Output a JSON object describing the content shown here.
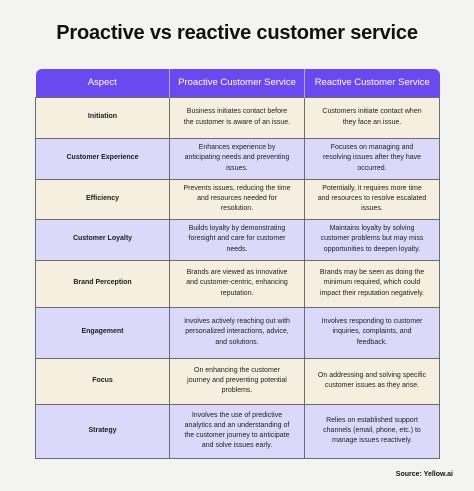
{
  "title": "Proactive vs reactive customer service",
  "headers": [
    "Aspect",
    "Proactive Customer Service",
    "Reactive Customer Service"
  ],
  "rows": [
    {
      "aspect": "Initiation",
      "proactive": "Business initiates contact before the customer is aware of an issue.",
      "reactive": "Customers initiate contact when they face an issue."
    },
    {
      "aspect": "Customer Experience",
      "proactive": "Enhances experience by anticipating needs and preventing issues.",
      "reactive": "Focuses on managing and resolving issues after they have occurred."
    },
    {
      "aspect": "Efficiency",
      "proactive": "Prevents issues, reducing the time and resources needed for resolution.",
      "reactive": "Potentially, it requires more time and resources to resolve escalated issues."
    },
    {
      "aspect": "Customer Loyalty",
      "proactive": "Builds loyalty by demonstrating foresight and care for customer needs.",
      "reactive": "Maintains loyalty by solving customer problems but may miss opportunities to deepen loyalty."
    },
    {
      "aspect": "Brand Perception",
      "proactive": "Brands are viewed as innovative and customer-centric, enhancing reputation.",
      "reactive": "Brands may be seen as doing the minimum required, which could impact their reputation negatively."
    },
    {
      "aspect": "Engagement",
      "proactive": "Involves actively reaching out with personalized interactions, advice, and solutions.",
      "reactive": "Involves responding to customer inquiries, complaints, and feedback."
    },
    {
      "aspect": "Focus",
      "proactive": "On enhancing the customer journey and preventing potential problems.",
      "reactive": "On addressing and solving specific customer issues as they arise."
    },
    {
      "aspect": "Strategy",
      "proactive": "Involves the use of predictive analytics and an understanding of the customer journey to anticipate and solve issues early.",
      "reactive": "Relies on established support channels (email, phone, etc.) to manage issues reactively."
    }
  ],
  "source": "Source: Yellow.ai",
  "colors": {
    "header_bg": "#6b49f0",
    "row_odd_bg": "#f6efdf",
    "row_even_bg": "#dcd8f9",
    "page_bg": "#f3f3f1"
  }
}
